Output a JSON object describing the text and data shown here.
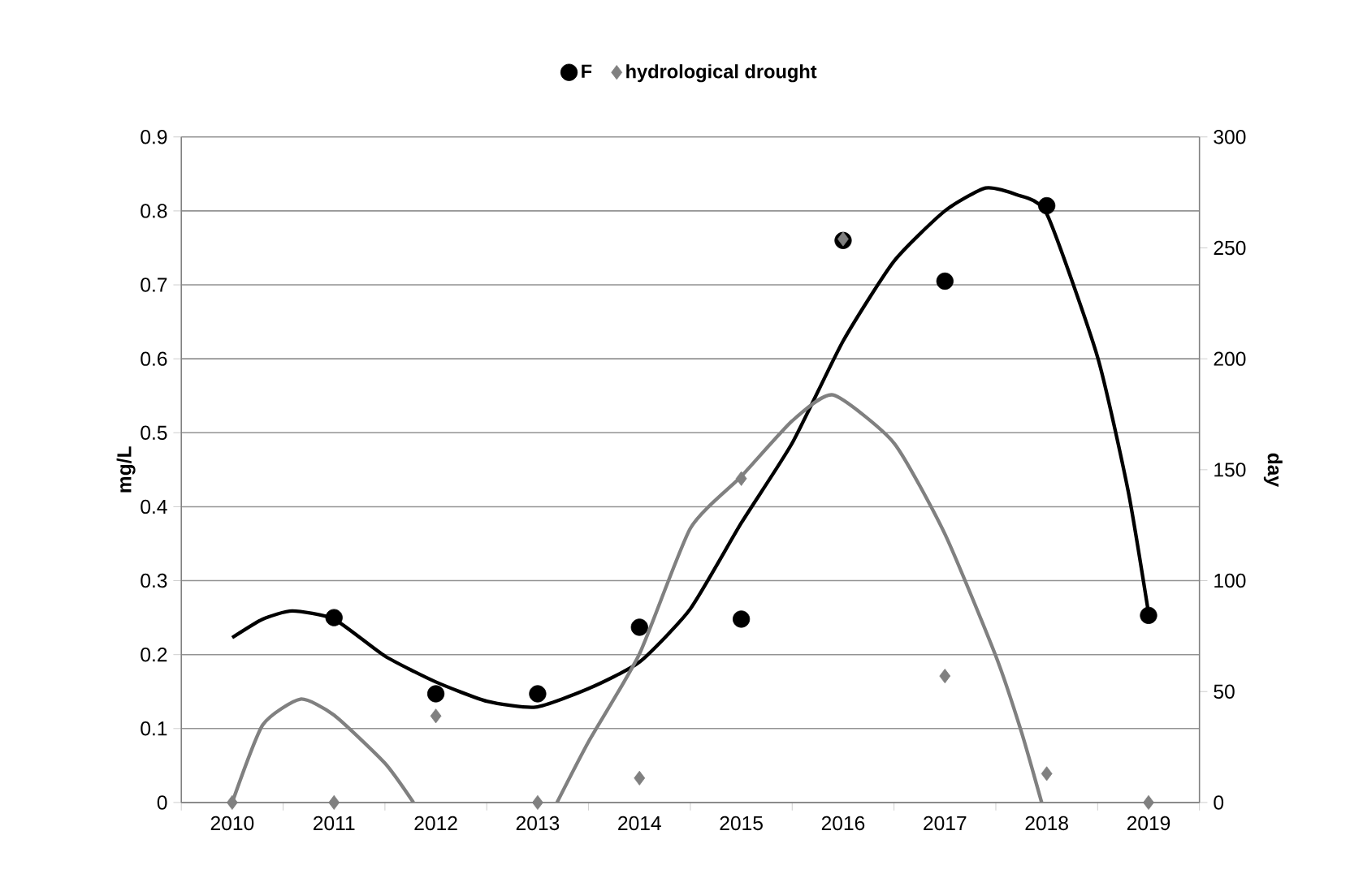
{
  "chart_data": {
    "type": "scatter",
    "ylabel": "mg/L",
    "y2label": "day",
    "xlim": [
      2009.5,
      2019.5
    ],
    "xticks": [
      {
        "value": 2009.5,
        "label": null
      },
      {
        "value": 2010,
        "label": "2010"
      },
      {
        "value": 2010.5,
        "label": null
      },
      {
        "value": 2011,
        "label": "2011"
      },
      {
        "value": 2011.5,
        "label": null
      },
      {
        "value": 2012,
        "label": "2012"
      },
      {
        "value": 2012.5,
        "label": null
      },
      {
        "value": 2013,
        "label": "2013"
      },
      {
        "value": 2013.5,
        "label": null
      },
      {
        "value": 2014,
        "label": "2014"
      },
      {
        "value": 2014.5,
        "label": null
      },
      {
        "value": 2015,
        "label": "2015"
      },
      {
        "value": 2015.5,
        "label": null
      },
      {
        "value": 2016,
        "label": "2016"
      },
      {
        "value": 2016.5,
        "label": null
      },
      {
        "value": 2017,
        "label": "2017"
      },
      {
        "value": 2017.5,
        "label": null
      },
      {
        "value": 2018,
        "label": "2018"
      },
      {
        "value": 2018.5,
        "label": null
      },
      {
        "value": 2019,
        "label": "2019"
      },
      {
        "value": 2019.5,
        "label": null
      }
    ],
    "ylim": [
      0,
      0.9
    ],
    "yticks": [
      0,
      0.1,
      0.2,
      0.3,
      0.4,
      0.5,
      0.6,
      0.7,
      0.8,
      0.9
    ],
    "y2lim": [
      0,
      300
    ],
    "y2ticks": [
      0,
      50,
      100,
      150,
      200,
      250,
      300
    ],
    "grid": "y",
    "legend": "top",
    "series": [
      {
        "name": "F",
        "marker": "circle",
        "color": "#000000",
        "x": [
          2011,
          2012,
          2013,
          2014,
          2015,
          2016,
          2017,
          2018,
          2019
        ],
        "values": [
          0.25,
          0.147,
          0.147,
          0.237,
          0.248,
          0.76,
          0.705,
          0.807,
          0.253
        ]
      },
      {
        "name": "hydrological drought",
        "marker": "diamond",
        "color": "#808080",
        "axis": "y2",
        "x": [
          2010,
          2011,
          2012,
          2013,
          2014,
          2015,
          2016,
          2017,
          2018,
          2019
        ],
        "values": [
          0,
          0,
          39,
          0,
          11,
          146,
          254,
          57,
          13,
          0
        ]
      },
      {
        "type": "line",
        "marker": "none",
        "color": "#000000",
        "x": [
          2010,
          2010.3,
          2010.59,
          2011,
          2011.5,
          2012,
          2012.5,
          2012.98,
          2013.5,
          2014,
          2014.5,
          2015,
          2015.5,
          2016,
          2016.5,
          2017,
          2017.4,
          2017.7,
          2018,
          2018.5,
          2018.8,
          2019
        ],
        "values": [
          0.223,
          0.248,
          0.259,
          0.248,
          0.198,
          0.163,
          0.137,
          0.129,
          0.154,
          0.19,
          0.262,
          0.378,
          0.486,
          0.624,
          0.732,
          0.8,
          0.831,
          0.822,
          0.796,
          0.602,
          0.421,
          0.256
        ]
      },
      {
        "type": "line",
        "marker": "none",
        "color": "#808080",
        "axis": "y2",
        "x": [
          2010,
          2010.3,
          2010.67,
          2011,
          2011.5,
          2011.78,
          2012.5,
          2013.19,
          2013.5,
          2014,
          2014.5,
          2015,
          2015.5,
          2015.9,
          2016.5,
          2017,
          2017.5,
          2017.75,
          2017.95
        ],
        "values": [
          0,
          35,
          46.6,
          39.4,
          17.7,
          0,
          null,
          0,
          27.4,
          67,
          123.6,
          147,
          172,
          183.7,
          162,
          121,
          66,
          32,
          0
        ]
      }
    ]
  }
}
